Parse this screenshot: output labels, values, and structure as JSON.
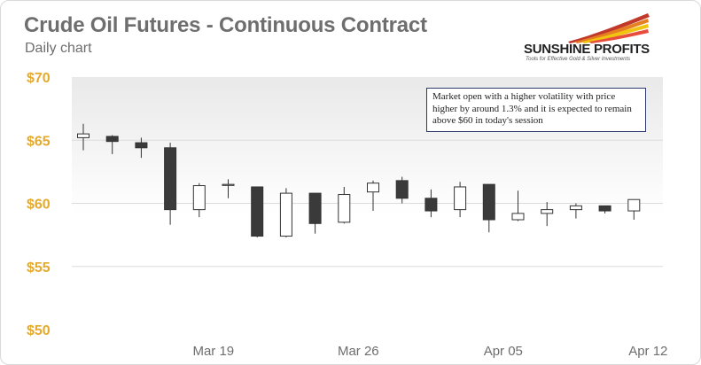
{
  "header": {
    "title": "Crude Oil Futures - Continuous Contract",
    "subtitle": "Daily chart"
  },
  "logo": {
    "name": "SUNSHINE PROFITS",
    "tagline": "Tools for Effective Gold & Silver Investments"
  },
  "annotation": {
    "text": "Market open with a higher volatility with price higher by around 1.3% and it is expected to remain above $60 in today's session"
  },
  "colors": {
    "ytick": "#e5a92e",
    "xtick": "#6e6e6e",
    "bearish_fill": "#3a3a3a",
    "bullish_fill": "#ffffff",
    "grid": "#dcdcdc"
  },
  "chart_data": {
    "type": "candlestick",
    "ylim": [
      50,
      70
    ],
    "yticks": [
      {
        "value": 50,
        "label": "$50"
      },
      {
        "value": 55,
        "label": "$55"
      },
      {
        "value": 60,
        "label": "$60"
      },
      {
        "value": 65,
        "label": "$65"
      },
      {
        "value": 70,
        "label": "$70"
      }
    ],
    "xticks": [
      {
        "index": 5,
        "label": "Mar 19"
      },
      {
        "index": 10,
        "label": "Mar 26"
      },
      {
        "index": 15,
        "label": "Apr 05"
      },
      {
        "index": 20,
        "label": "Apr 12"
      }
    ],
    "grid": true,
    "candles": [
      {
        "open": 65.2,
        "high": 66.3,
        "low": 64.2,
        "close": 65.5
      },
      {
        "open": 65.3,
        "high": 65.4,
        "low": 63.9,
        "close": 64.9
      },
      {
        "open": 64.8,
        "high": 65.2,
        "low": 63.6,
        "close": 64.4
      },
      {
        "open": 64.4,
        "high": 64.8,
        "low": 58.3,
        "close": 59.5
      },
      {
        "open": 59.5,
        "high": 61.6,
        "low": 58.9,
        "close": 61.4
      },
      {
        "open": 61.5,
        "high": 61.9,
        "low": 60.4,
        "close": 61.5
      },
      {
        "open": 61.3,
        "high": 61.3,
        "low": 57.3,
        "close": 57.4
      },
      {
        "open": 57.4,
        "high": 61.2,
        "low": 57.3,
        "close": 60.8
      },
      {
        "open": 60.8,
        "high": 60.8,
        "low": 57.6,
        "close": 58.4
      },
      {
        "open": 58.5,
        "high": 61.3,
        "low": 58.4,
        "close": 60.7
      },
      {
        "open": 60.9,
        "high": 61.8,
        "low": 59.4,
        "close": 61.6
      },
      {
        "open": 61.8,
        "high": 62.1,
        "low": 60.0,
        "close": 60.4
      },
      {
        "open": 60.4,
        "high": 61.1,
        "low": 58.9,
        "close": 59.4
      },
      {
        "open": 59.5,
        "high": 61.7,
        "low": 58.9,
        "close": 61.3
      },
      {
        "open": 61.5,
        "high": 61.5,
        "low": 57.7,
        "close": 58.7
      },
      {
        "open": 58.7,
        "high": 61.0,
        "low": 58.6,
        "close": 59.2
      },
      {
        "open": 59.2,
        "high": 60.1,
        "low": 58.2,
        "close": 59.5
      },
      {
        "open": 59.5,
        "high": 60.0,
        "low": 58.8,
        "close": 59.8
      },
      {
        "open": 59.8,
        "high": 59.8,
        "low": 59.2,
        "close": 59.4
      },
      {
        "open": 59.4,
        "high": 60.3,
        "low": 58.7,
        "close": 60.3
      }
    ]
  }
}
